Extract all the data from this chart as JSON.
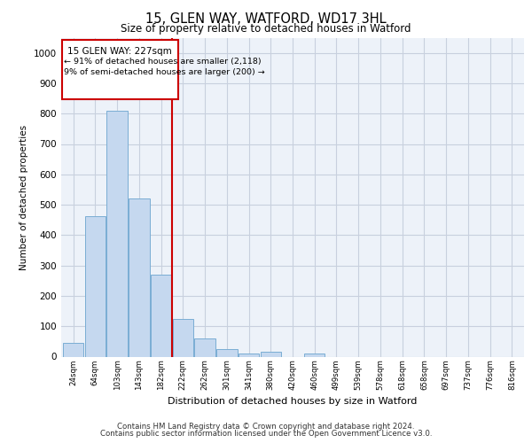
{
  "title1": "15, GLEN WAY, WATFORD, WD17 3HL",
  "title2": "Size of property relative to detached houses in Watford",
  "xlabel": "Distribution of detached houses by size in Watford",
  "ylabel": "Number of detached properties",
  "categories": [
    "24sqm",
    "64sqm",
    "103sqm",
    "143sqm",
    "182sqm",
    "222sqm",
    "262sqm",
    "301sqm",
    "341sqm",
    "380sqm",
    "420sqm",
    "460sqm",
    "499sqm",
    "539sqm",
    "578sqm",
    "618sqm",
    "658sqm",
    "697sqm",
    "737sqm",
    "776sqm",
    "816sqm"
  ],
  "bar_heights": [
    45,
    462,
    810,
    520,
    270,
    125,
    60,
    25,
    10,
    15,
    0,
    10,
    0,
    0,
    0,
    0,
    0,
    0,
    0,
    0,
    0
  ],
  "bar_color": "#c5d8ef",
  "bar_edge_color": "#7aadd4",
  "subject_label": "15 GLEN WAY: 227sqm",
  "annotation_line1": "← 91% of detached houses are smaller (2,118)",
  "annotation_line2": "9% of semi-detached houses are larger (200) →",
  "annotation_box_color": "#ffffff",
  "annotation_box_edge": "#cc0000",
  "vline_color": "#cc0000",
  "vline_x": 4.5,
  "ylim": [
    0,
    1050
  ],
  "yticks": [
    0,
    100,
    200,
    300,
    400,
    500,
    600,
    700,
    800,
    900,
    1000
  ],
  "footer1": "Contains HM Land Registry data © Crown copyright and database right 2024.",
  "footer2": "Contains public sector information licensed under the Open Government Licence v3.0.",
  "plot_bg_color": "#edf2f9",
  "grid_color": "#c8d0de"
}
